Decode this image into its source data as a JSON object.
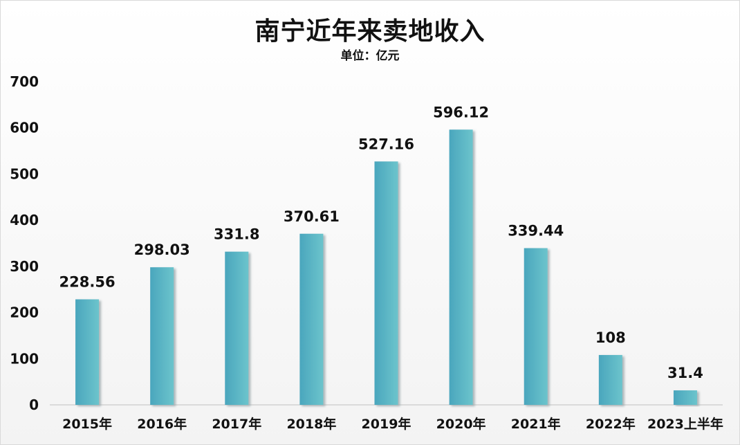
{
  "chart_data": {
    "type": "bar",
    "title": "南宁近年来卖地收入",
    "subtitle": "单位：亿元",
    "categories": [
      "2015年",
      "2016年",
      "2017年",
      "2018年",
      "2019年",
      "2020年",
      "2021年",
      "2022年",
      "2023上半年"
    ],
    "values": [
      228.56,
      298.03,
      331.8,
      370.61,
      527.16,
      596.12,
      339.44,
      108,
      31.4
    ],
    "data_labels": [
      "228.56",
      "298.03",
      "331.8",
      "370.61",
      "527.16",
      "596.12",
      "339.44",
      "108",
      "31.4"
    ],
    "ylim": [
      0,
      700
    ],
    "yticks": [
      "0",
      "100",
      "200",
      "300",
      "400",
      "500",
      "600",
      "700"
    ],
    "grid": false,
    "legend": "none",
    "colors": {
      "bar_left": "#4aa6bd",
      "bar_right": "#6cc4cc",
      "bar_shadow": "#9aa7ab"
    }
  }
}
